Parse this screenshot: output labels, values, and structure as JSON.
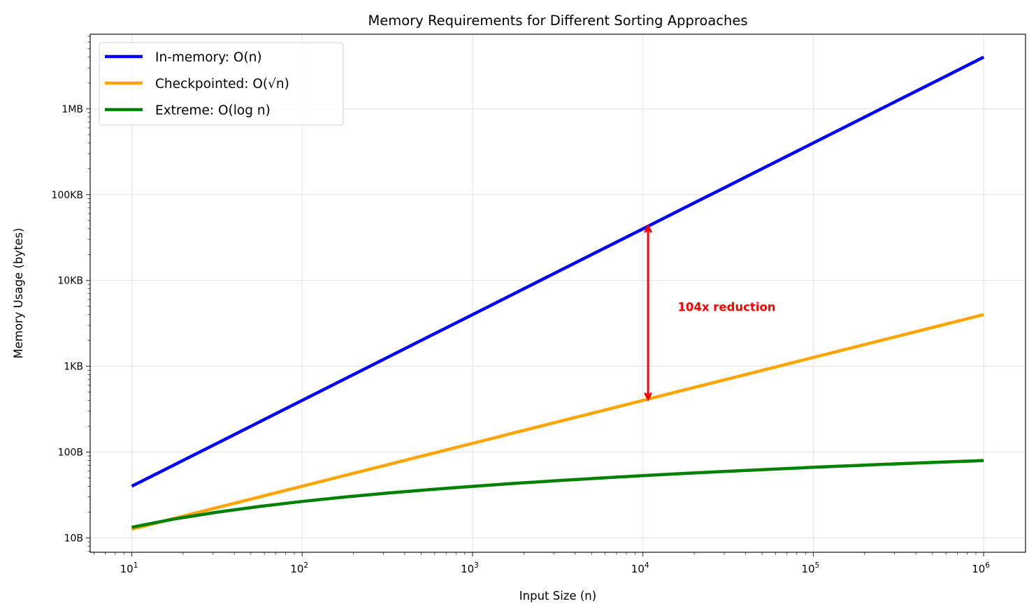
{
  "chart_data": {
    "type": "line",
    "title": "Memory Requirements for Different Sorting Approaches",
    "xlabel": "Input Size (n)",
    "ylabel": "Memory Usage (bytes)",
    "xscale": "log",
    "yscale": "log",
    "xlim": [
      5.7,
      1760000
    ],
    "ylim": [
      6.8,
      7400000
    ],
    "grid": true,
    "legend_position": "top-left",
    "x_ticks": [
      {
        "value": 10,
        "base": "10",
        "exp": "1"
      },
      {
        "value": 100,
        "base": "10",
        "exp": "2"
      },
      {
        "value": 1000,
        "base": "10",
        "exp": "3"
      },
      {
        "value": 10000,
        "base": "10",
        "exp": "4"
      },
      {
        "value": 100000,
        "base": "10",
        "exp": "5"
      },
      {
        "value": 1000000,
        "base": "10",
        "exp": "6"
      }
    ],
    "y_ticks": [
      {
        "value": 10,
        "label": "10B"
      },
      {
        "value": 100,
        "label": "100B"
      },
      {
        "value": 1000,
        "label": "1KB"
      },
      {
        "value": 10000,
        "label": "10KB"
      },
      {
        "value": 100000,
        "label": "100KB"
      },
      {
        "value": 1000000,
        "label": "1MB"
      }
    ],
    "x": [
      10,
      17.78,
      31.62,
      56.23,
      100,
      177.8,
      316.2,
      562.3,
      1000,
      1778,
      3162,
      5623,
      10000,
      17783,
      31623,
      56234,
      100000,
      177828,
      316228,
      562341,
      1000000
    ],
    "series": [
      {
        "name": "In-memory: O(n)",
        "color": "#0000ff",
        "values": [
          40,
          71.1,
          126.5,
          224.9,
          400,
          711,
          1265,
          2249,
          4000,
          7113,
          12649,
          22494,
          40000,
          71131,
          126491,
          224937,
          400000,
          711312,
          1264911,
          2249365,
          4000000
        ]
      },
      {
        "name": "Checkpointed: O(√n)",
        "color": "#ffa500",
        "values": [
          12.65,
          16.87,
          22.49,
          30.0,
          40,
          53.35,
          71.13,
          94.85,
          126.5,
          168.7,
          224.9,
          300,
          400,
          533.5,
          711.3,
          948.5,
          1265,
          1687,
          2249,
          3000,
          4000
        ]
      },
      {
        "name": "Extreme: O(log n)",
        "color": "#008000",
        "values": [
          13.29,
          16.61,
          19.93,
          23.25,
          26.58,
          29.9,
          33.22,
          36.54,
          39.86,
          43.18,
          46.51,
          49.83,
          53.15,
          56.47,
          59.79,
          63.12,
          66.44,
          69.76,
          73.08,
          76.4,
          79.73
        ]
      }
    ],
    "annotation": {
      "text": "104x reduction",
      "color": "#ff0000",
      "arrow_x": 10723,
      "arrow_from": 414,
      "arrow_to": 42892,
      "text_x": 16000,
      "text_y": 4800
    }
  }
}
